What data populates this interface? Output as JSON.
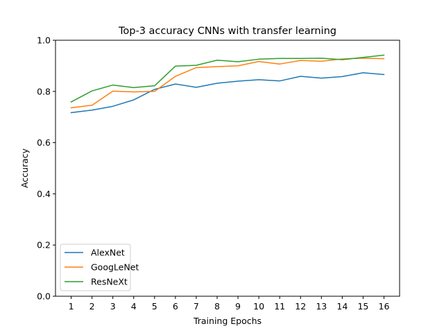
{
  "chart_data": {
    "type": "line",
    "title": "Top-3 accuracy CNNs with transfer learning",
    "xlabel": "Training Epochs",
    "ylabel": "Accuracy",
    "x": [
      1,
      2,
      3,
      4,
      5,
      6,
      7,
      8,
      9,
      10,
      11,
      12,
      13,
      14,
      15,
      16
    ],
    "xlim": [
      0.25,
      16.75
    ],
    "ylim": [
      0.0,
      1.0
    ],
    "yticks": [
      0.0,
      0.2,
      0.4,
      0.6,
      0.8,
      1.0
    ],
    "ytick_labels": [
      "0.0",
      "0.2",
      "0.4",
      "0.6",
      "0.8",
      "1.0"
    ],
    "xtick_labels": [
      "1",
      "2",
      "3",
      "4",
      "5",
      "6",
      "7",
      "8",
      "9",
      "10",
      "11",
      "12",
      "13",
      "14",
      "15",
      "16"
    ],
    "grid": false,
    "legend_position": "lower-left",
    "series": [
      {
        "name": "AlexNet",
        "color": "#1f77b4",
        "values": [
          0.717,
          0.727,
          0.742,
          0.767,
          0.808,
          0.829,
          0.816,
          0.832,
          0.84,
          0.846,
          0.841,
          0.859,
          0.852,
          0.858,
          0.873,
          0.866
        ]
      },
      {
        "name": "GoogLeNet",
        "color": "#ff7f0e",
        "values": [
          0.736,
          0.746,
          0.801,
          0.798,
          0.8,
          0.859,
          0.893,
          0.897,
          0.9,
          0.917,
          0.907,
          0.921,
          0.918,
          0.927,
          0.93,
          0.928
        ]
      },
      {
        "name": "ResNeXt",
        "color": "#2ca02c",
        "values": [
          0.759,
          0.802,
          0.825,
          0.815,
          0.822,
          0.899,
          0.902,
          0.922,
          0.916,
          0.926,
          0.929,
          0.929,
          0.93,
          0.924,
          0.933,
          0.942
        ]
      }
    ]
  }
}
